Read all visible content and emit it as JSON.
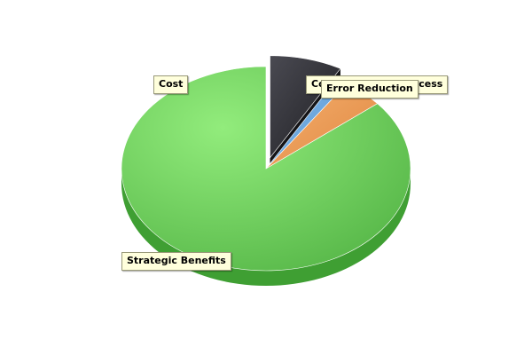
{
  "chart_data": {
    "type": "pie",
    "style": "3d-exploded",
    "title": "",
    "slices": [
      {
        "label": "Strategic Benefits",
        "value": 86.0,
        "color": "#6fd365"
      },
      {
        "label": "Cost",
        "value": 4.6,
        "color": "#ef9a55"
      },
      {
        "label": "Communication Process",
        "value": 1.3,
        "color": "#6aa8e0"
      },
      {
        "label": "Error Reduction",
        "value": 8.1,
        "color": "#2e2e34"
      }
    ],
    "exploded": [
      "Error Reduction"
    ],
    "legend": "none",
    "labels": "callout-boxes"
  }
}
